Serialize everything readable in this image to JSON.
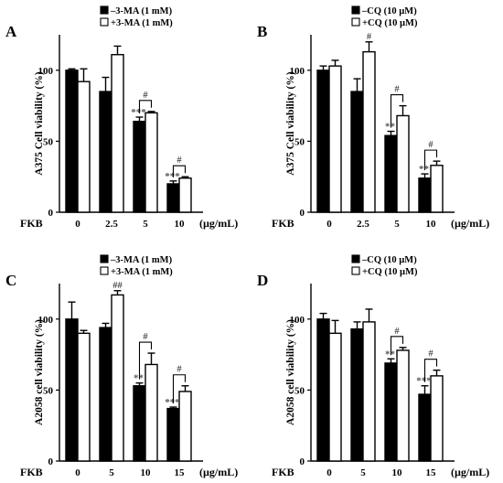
{
  "chart_data": [
    {
      "type": "bar",
      "panel": "A",
      "ylabel": "A375 Cell viability (%)",
      "xlabel_prefix": "FKB",
      "unit": "(µg/mL)",
      "categories": [
        "0",
        "2.5",
        "5",
        "10"
      ],
      "ylim": [
        0,
        125
      ],
      "yticks": [
        0,
        50,
        100
      ],
      "series": [
        {
          "name": "–3-MA (1 mM)",
          "fill": "#000000",
          "values": [
            100,
            85,
            64,
            20
          ],
          "errors": [
            1,
            10,
            3,
            2
          ]
        },
        {
          "name": "+3-MA (1 mM)",
          "fill": "#ffffff",
          "values": [
            92,
            111,
            70,
            24
          ],
          "errors": [
            9,
            6,
            1,
            1
          ]
        }
      ],
      "stars": [
        "",
        "",
        "***",
        "***"
      ],
      "hash_above_second": [
        "",
        "",
        "",
        ""
      ],
      "brackets": [
        {
          "category": 2,
          "label": "#"
        },
        {
          "category": 3,
          "label": "#"
        }
      ]
    },
    {
      "type": "bar",
      "panel": "B",
      "ylabel": "A375 Cell viability (%)",
      "xlabel_prefix": "FKB",
      "unit": "(µg/mL)",
      "categories": [
        "0",
        "2.5",
        "5",
        "10"
      ],
      "ylim": [
        0,
        125
      ],
      "yticks": [
        0,
        50,
        100
      ],
      "series": [
        {
          "name": "–CQ (10 µM)",
          "fill": "#000000",
          "values": [
            100,
            85,
            54,
            24
          ],
          "errors": [
            3,
            9,
            3,
            3
          ]
        },
        {
          "name": "+CQ (10 µM)",
          "fill": "#ffffff",
          "values": [
            103,
            113,
            68,
            33
          ],
          "errors": [
            4,
            7,
            7,
            3
          ]
        }
      ],
      "stars": [
        "",
        "",
        "**",
        "**"
      ],
      "hash_above_second": [
        "",
        "#",
        "",
        ""
      ],
      "brackets": [
        {
          "category": 2,
          "label": "#"
        },
        {
          "category": 3,
          "label": "#"
        }
      ]
    },
    {
      "type": "bar",
      "panel": "C",
      "ylabel": "A2058 cell viability (%)",
      "xlabel_prefix": "FKB",
      "unit": "(µg/mL)",
      "categories": [
        "0",
        "5",
        "10",
        "15"
      ],
      "ylim": [
        0,
        125
      ],
      "yticks": [
        0,
        50,
        100
      ],
      "series": [
        {
          "name": "–3-MA (1 mM)",
          "fill": "#000000",
          "values": [
            100,
            94,
            53,
            37
          ],
          "errors": [
            12,
            3,
            2,
            1
          ]
        },
        {
          "name": "+3-MA (1 mM)",
          "fill": "#ffffff",
          "values": [
            90,
            117,
            68,
            49
          ],
          "errors": [
            2,
            3,
            8,
            4
          ]
        }
      ],
      "stars": [
        "",
        "",
        "**",
        "***"
      ],
      "hash_above_second": [
        "",
        "##",
        "",
        ""
      ],
      "brackets": [
        {
          "category": 2,
          "label": "#"
        },
        {
          "category": 3,
          "label": "#"
        }
      ]
    },
    {
      "type": "bar",
      "panel": "D",
      "ylabel": "A2058 cell viability (%)",
      "xlabel_prefix": "FKB",
      "unit": "(µg/mL)",
      "categories": [
        "0",
        "5",
        "10",
        "15"
      ],
      "ylim": [
        0,
        125
      ],
      "yticks": [
        0,
        50,
        100
      ],
      "series": [
        {
          "name": "–CQ (10 µM)",
          "fill": "#000000",
          "values": [
            100,
            93,
            69,
            47
          ],
          "errors": [
            4,
            5,
            3,
            6
          ]
        },
        {
          "name": "+CQ (10 µM)",
          "fill": "#ffffff",
          "values": [
            90,
            98,
            78,
            60
          ],
          "errors": [
            9,
            9,
            2,
            4
          ]
        }
      ],
      "stars": [
        "",
        "",
        "**",
        "***"
      ],
      "hash_above_second": [
        "",
        "",
        "",
        ""
      ],
      "brackets": [
        {
          "category": 2,
          "label": "#"
        },
        {
          "category": 3,
          "label": "#"
        }
      ]
    }
  ]
}
